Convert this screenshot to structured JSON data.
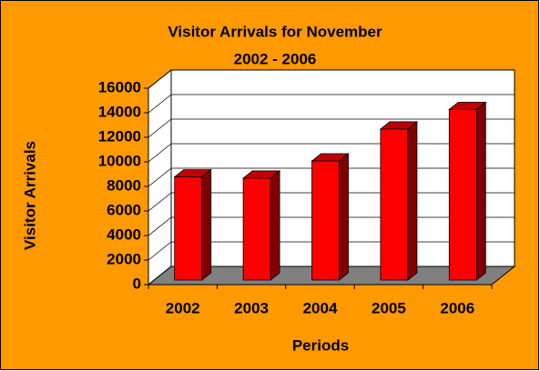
{
  "chart_data": {
    "type": "bar3d",
    "title": "Visitor Arrivals for November",
    "subtitle": "2002 - 2006",
    "x_label": "Periods",
    "y_label": "Visitor Arrivals",
    "categories": [
      "2002",
      "2003",
      "2004",
      "2005",
      "2006"
    ],
    "values": [
      8400,
      8300,
      9700,
      12300,
      13900
    ],
    "color": "#ff0000",
    "background": "#ff9900",
    "ylim": [
      0,
      16000
    ],
    "yticks": [
      0,
      2000,
      4000,
      6000,
      8000,
      10000,
      12000,
      14000,
      16000
    ],
    "grid": true
  }
}
